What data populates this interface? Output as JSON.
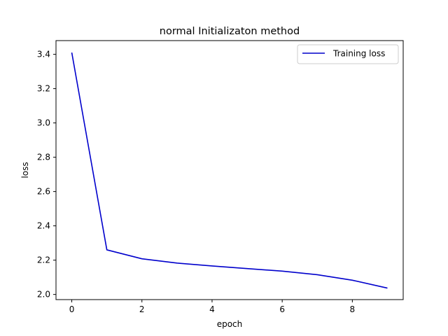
{
  "chart_data": {
    "type": "line",
    "title": "normal Initializaton method",
    "xlabel": "epoch",
    "ylabel": "loss",
    "x": [
      0,
      1,
      2,
      3,
      4,
      5,
      6,
      7,
      8,
      9
    ],
    "series": [
      {
        "name": "Training loss",
        "color": "#0000cc",
        "values": [
          3.41,
          2.26,
          2.208,
          2.183,
          2.166,
          2.151,
          2.136,
          2.115,
          2.083,
          2.037
        ]
      }
    ],
    "xlim": [
      -0.45,
      9.45
    ],
    "ylim": [
      1.97,
      3.48
    ],
    "xticks": [
      0,
      2,
      4,
      6,
      8
    ],
    "yticks": [
      2.0,
      2.2,
      2.4,
      2.6,
      2.8,
      3.0,
      3.2,
      3.4
    ],
    "ytick_labels": [
      "2.0",
      "2.2",
      "2.4",
      "2.6",
      "2.8",
      "3.0",
      "3.2",
      "3.4"
    ],
    "grid": false,
    "legend_position": "top-right"
  }
}
